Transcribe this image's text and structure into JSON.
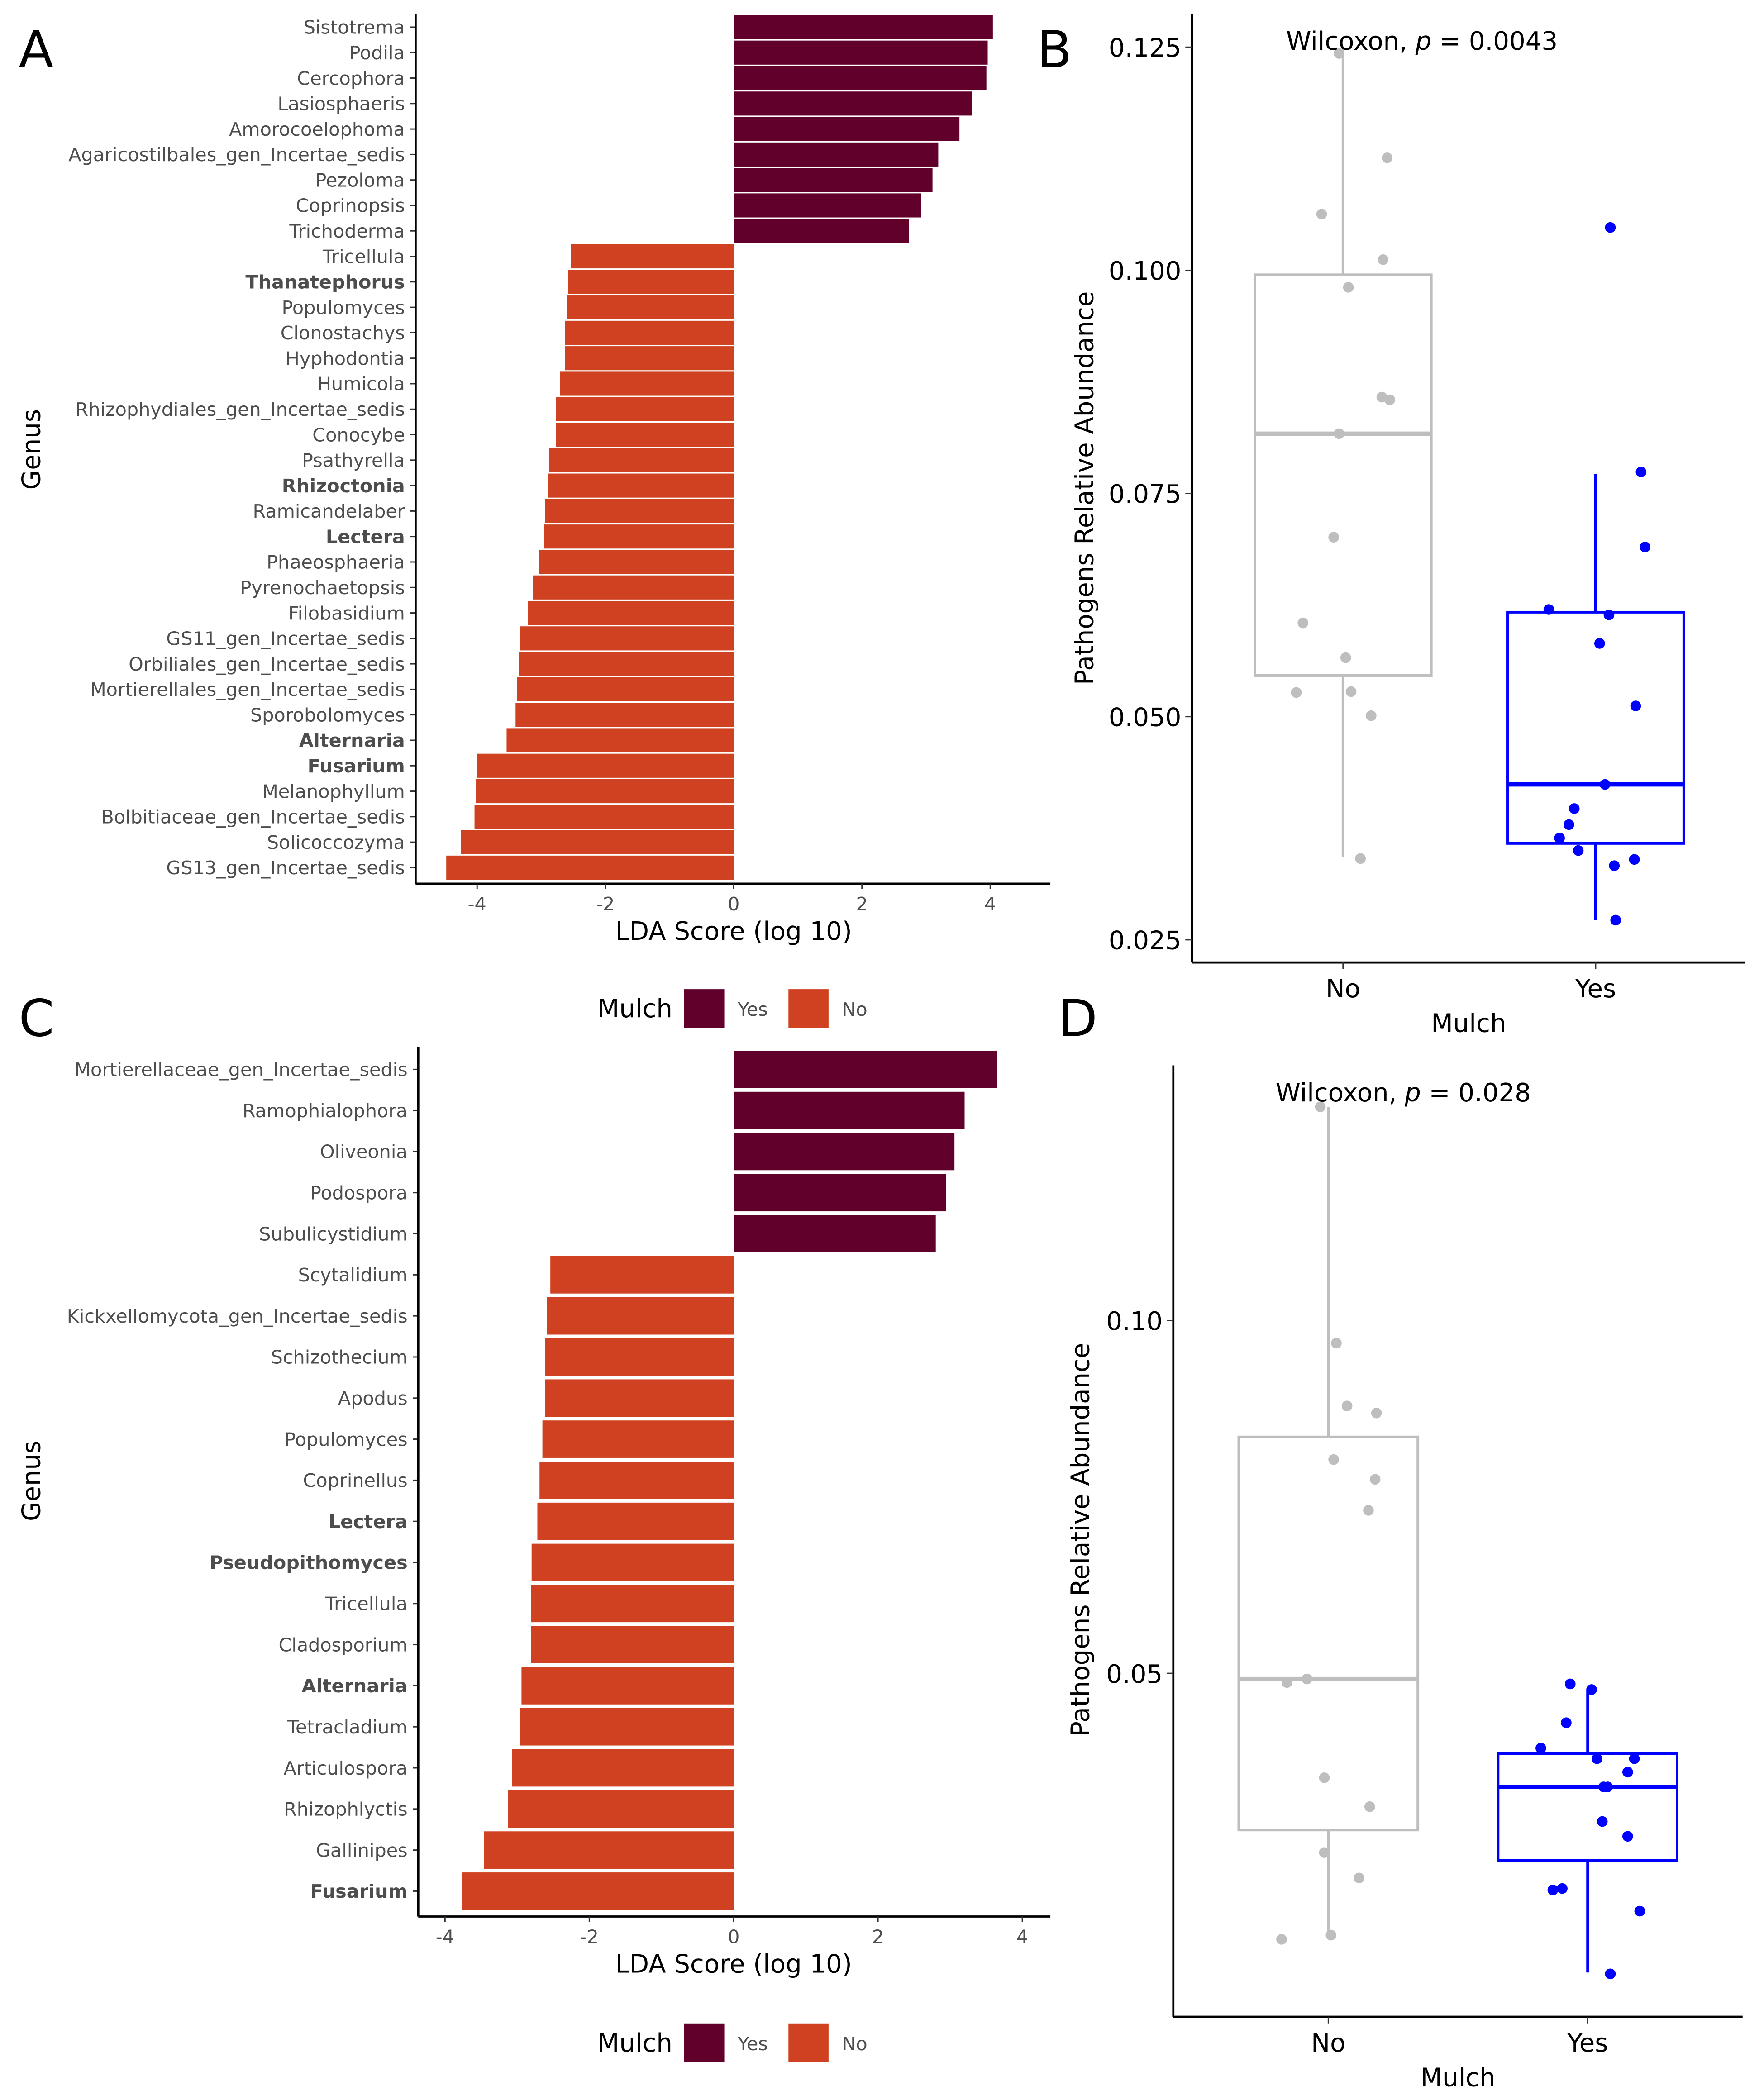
{
  "panel_labels": [
    "A",
    "B",
    "C",
    "D"
  ],
  "legend": {
    "title": "Mulch",
    "items": [
      {
        "label": "Yes",
        "color": "#62002c"
      },
      {
        "label": "No",
        "color": "#cf4120"
      }
    ]
  },
  "chart_data": [
    {
      "id": "A",
      "type": "bar",
      "orientation": "horizontal",
      "xlabel": "LDA Score (log 10)",
      "ylabel": "Genus",
      "xlim": [
        -4.8,
        4.9
      ],
      "xticks": [
        -4,
        -2,
        0,
        2,
        4
      ],
      "xtick_labels": [
        "-4",
        "-2",
        "0",
        "2",
        "4"
      ],
      "categories": [
        "Sistotrema",
        "Podila",
        "Cercophora",
        "Lasiosphaeris",
        "Amorocoelophoma",
        "Agaricostilbales_gen_Incertae_sedis",
        "Pezoloma",
        "Coprinopsis",
        "Trichoderma",
        "Tricellula",
        "Thanatephorus",
        "Populomyces",
        "Clonostachys",
        "Hyphodontia",
        "Humicola",
        "Rhizophydiales_gen_Incertae_sedis",
        "Conocybe",
        "Psathyrella",
        "Rhizoctonia",
        "Ramicandelaber",
        "Lectera",
        "Phaeosphaeria",
        "Pyrenochaetopsis",
        "Filobasidium",
        "GS11_gen_Incertae_sedis",
        "Orbiliales_gen_Incertae_sedis",
        "Mortierellales_gen_Incertae_sedis",
        "Sporobolomyces",
        "Alternaria",
        "Fusarium",
        "Melanophyllum",
        "Bolbitiaceae_gen_Incertae_sedis",
        "Solicoccozyma",
        "GS13_gen_Incertae_sedis"
      ],
      "bold": [
        "Thanatephorus",
        "Rhizoctonia",
        "Lectera",
        "Alternaria",
        "Fusarium"
      ],
      "values": [
        4.04,
        3.96,
        3.94,
        3.71,
        3.52,
        3.19,
        3.1,
        2.92,
        2.73,
        -2.54,
        -2.58,
        -2.6,
        -2.63,
        -2.63,
        -2.71,
        -2.77,
        -2.77,
        -2.88,
        -2.9,
        -2.94,
        -2.96,
        -3.04,
        -3.13,
        -3.21,
        -3.33,
        -3.35,
        -3.38,
        -3.4,
        -3.54,
        -4.0,
        -4.02,
        -4.04,
        -4.25,
        -4.48
      ],
      "legend": "bottom"
    },
    {
      "id": "B",
      "type": "box",
      "xlabel": "Mulch",
      "ylabel": "Pathogens Relative Abundance",
      "ylim": [
        0.025,
        0.125
      ],
      "yticks": [
        0.025,
        0.05,
        0.075,
        0.1,
        0.125
      ],
      "ytick_labels": [
        "0.025",
        "0.050",
        "0.075",
        "0.100",
        "0.125"
      ],
      "annotation": {
        "test": "Wilcoxon,",
        "p_label": "p",
        "p_text": "= 0.0043"
      },
      "groups": [
        {
          "name": "No",
          "color": "#bebebe",
          "q1": 0.0546,
          "median": 0.0817,
          "q3": 0.0995,
          "whisker_low": 0.0343,
          "whisker_high": 0.1247,
          "points": [
            0.1243,
            0.1126,
            0.1063,
            0.1012,
            0.0981,
            0.0858,
            0.0855,
            0.0817,
            0.0701,
            0.0605,
            0.0566,
            0.0527,
            0.0528,
            0.0501,
            0.0341
          ]
        },
        {
          "name": "Yes",
          "color": "#0000ff",
          "q1": 0.0358,
          "median": 0.0424,
          "q3": 0.0617,
          "whisker_low": 0.0272,
          "whisker_high": 0.0772,
          "points": [
            0.1048,
            0.0774,
            0.069,
            0.062,
            0.0614,
            0.0582,
            0.0512,
            0.0424,
            0.0397,
            0.0379,
            0.0364,
            0.035,
            0.034,
            0.0333,
            0.0272
          ]
        }
      ]
    },
    {
      "id": "C",
      "type": "bar",
      "orientation": "horizontal",
      "xlabel": "LDA Score (log 10)",
      "ylabel": "Genus",
      "xlim": [
        -4.3,
        4.4
      ],
      "xticks": [
        -4,
        -2,
        0,
        2,
        4
      ],
      "xtick_labels": [
        "-4",
        "-2",
        "0",
        "2",
        "4"
      ],
      "categories": [
        "Mortierellaceae_gen_Incertae_sedis",
        "Ramophialophora",
        "Oliveonia",
        "Podospora",
        "Subulicystidium",
        "Scytalidium",
        "Kickxellomycota_gen_Incertae_sedis",
        "Schizothecium",
        "Apodus",
        "Populomyces",
        "Coprinellus",
        "Lectera",
        "Pseudopithomyces",
        "Tricellula",
        "Cladosporium",
        "Alternaria",
        "Tetracladium",
        "Articulospora",
        "Rhizophlyctis",
        "Gallinipes",
        "Fusarium"
      ],
      "bold": [
        "Lectera",
        "Pseudopithomyces",
        "Alternaria",
        "Fusarium"
      ],
      "values": [
        3.65,
        3.2,
        3.06,
        2.94,
        2.8,
        -2.54,
        -2.59,
        -2.61,
        -2.61,
        -2.65,
        -2.69,
        -2.72,
        -2.8,
        -2.81,
        -2.81,
        -2.94,
        -2.96,
        -3.07,
        -3.13,
        -3.46,
        -3.76
      ],
      "legend": "bottom"
    },
    {
      "id": "D",
      "type": "box",
      "xlabel": "Mulch",
      "ylabel": "Pathogens Relative Abundance",
      "ylim": [
        0.005,
        0.135
      ],
      "yticks": [
        0.05,
        0.1
      ],
      "ytick_labels": [
        "0.05",
        "0.10"
      ],
      "annotation": {
        "test": "Wilcoxon,",
        "p_label": "p",
        "p_text": "= 0.028"
      },
      "groups": [
        {
          "name": "No",
          "color": "#bebebe",
          "q1": 0.0278,
          "median": 0.0492,
          "q3": 0.0835,
          "whisker_low": 0.0129,
          "whisker_high": 0.1303,
          "points": [
            0.1303,
            0.0968,
            0.0879,
            0.0869,
            0.0803,
            0.0775,
            0.0731,
            0.0492,
            0.0487,
            0.0352,
            0.0311,
            0.0246,
            0.021,
            0.0129,
            0.0123
          ]
        },
        {
          "name": "Yes",
          "color": "#0000ff",
          "q1": 0.0235,
          "median": 0.0339,
          "q3": 0.0386,
          "whisker_low": 0.0076,
          "whisker_high": 0.0477,
          "points": [
            0.0485,
            0.0477,
            0.043,
            0.0394,
            0.0379,
            0.0379,
            0.036,
            0.0339,
            0.0339,
            0.029,
            0.0269,
            0.0195,
            0.0193,
            0.0163,
            0.0074
          ]
        }
      ]
    }
  ]
}
